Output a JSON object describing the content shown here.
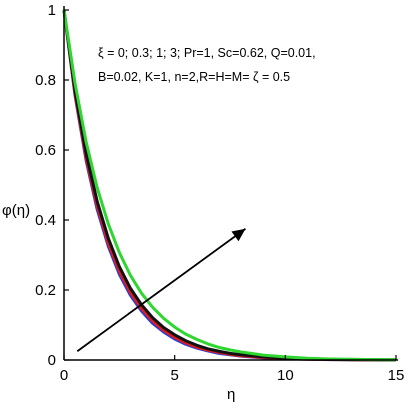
{
  "chart_data": {
    "type": "line",
    "title": "",
    "xlabel": "η",
    "ylabel": "φ(η)",
    "xlim": [
      0,
      15
    ],
    "ylim": [
      0,
      1
    ],
    "grid": false,
    "legend": "none",
    "x_ticks": [
      "0",
      "5",
      "10",
      "15"
    ],
    "y_ticks": [
      "0",
      "0.2",
      "0.4",
      "0.6",
      "0.8",
      "1"
    ],
    "annotation_lines": [
      "ξ = 0; 0.3; 1; 3; Pr=1,  Sc=0.62, Q=0.01,",
      "B=0.02, K=1, n=2,R=H=M= ζ = 0.5"
    ],
    "arrow": {
      "from": [
        0.6,
        0.025
      ],
      "to": [
        8.2,
        0.375
      ]
    },
    "x": [
      0,
      0.5,
      1,
      1.5,
      2,
      2.5,
      3,
      3.5,
      4,
      4.5,
      5,
      5.5,
      6,
      6.5,
      7,
      7.5,
      8,
      9,
      10,
      11,
      12,
      13,
      14,
      15
    ],
    "series": [
      {
        "color": "#2b3bd6",
        "values": [
          1.0,
          0.755,
          0.57,
          0.43,
          0.325,
          0.245,
          0.185,
          0.14,
          0.105,
          0.08,
          0.06,
          0.045,
          0.034,
          0.026,
          0.019,
          0.015,
          0.011,
          0.006,
          0.004,
          0.002,
          0.001,
          0.0007,
          0.0004,
          0.0002
        ]
      },
      {
        "color": "#e01b1b",
        "values": [
          1.0,
          0.76,
          0.578,
          0.44,
          0.334,
          0.254,
          0.193,
          0.147,
          0.112,
          0.085,
          0.065,
          0.049,
          0.037,
          0.028,
          0.022,
          0.016,
          0.012,
          0.007,
          0.004,
          0.002,
          0.0013,
          0.0008,
          0.0004,
          0.0002
        ]
      },
      {
        "color": "#111111",
        "values": [
          1.0,
          0.768,
          0.59,
          0.453,
          0.348,
          0.267,
          0.205,
          0.158,
          0.121,
          0.093,
          0.072,
          0.055,
          0.042,
          0.032,
          0.025,
          0.019,
          0.015,
          0.009,
          0.005,
          0.003,
          0.0018,
          0.001,
          0.0006,
          0.0003
        ]
      },
      {
        "color": "#2fd62f",
        "values": [
          1.0,
          0.79,
          0.623,
          0.492,
          0.389,
          0.307,
          0.242,
          0.191,
          0.151,
          0.119,
          0.094,
          0.074,
          0.059,
          0.046,
          0.036,
          0.029,
          0.023,
          0.014,
          0.009,
          0.005,
          0.003,
          0.002,
          0.0012,
          0.0007
        ]
      }
    ]
  }
}
